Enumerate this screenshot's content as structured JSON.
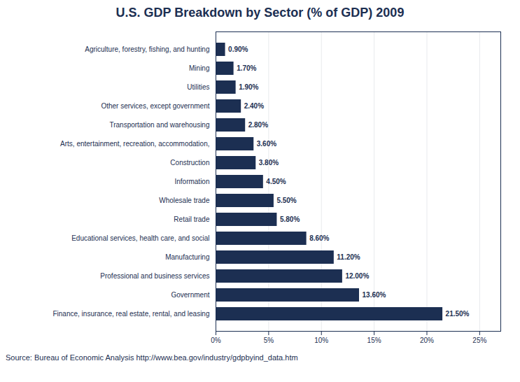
{
  "chart_data": {
    "type": "bar",
    "orientation": "horizontal",
    "title": "U.S. GDP Breakdown by Sector (% of GDP) 2009",
    "source": "Source: Bureau of Economic Analysis http://www.bea.gov/industry/gdpbyind_data.htm",
    "categories": [
      "Finance, insurance, real estate, rental, and leasing",
      "Government",
      "Professional and business services",
      "Manufacturing",
      "Educational services, health care, and social",
      "Retail trade",
      "Wholesale trade",
      "Information",
      "Construction",
      "Arts, entertainment, recreation, accommodation,",
      "Transportation and warehousing",
      "Other services, except government",
      "Utilities",
      "Mining",
      "Agriculture, forestry, fishing, and hunting"
    ],
    "values": [
      21.5,
      13.6,
      12.0,
      11.2,
      8.6,
      5.8,
      5.5,
      4.5,
      3.8,
      3.6,
      2.8,
      2.4,
      1.9,
      1.7,
      0.9
    ],
    "value_labels": [
      "21.50%",
      "13.60%",
      "12.00%",
      "11.20%",
      "8.60%",
      "5.80%",
      "5.50%",
      "4.50%",
      "3.80%",
      "3.60%",
      "2.80%",
      "2.40%",
      "1.90%",
      "1.70%",
      "0.90%"
    ],
    "data_labels": true,
    "color": "#1C2F52",
    "xlim": [
      0,
      27
    ],
    "xticks": [
      {
        "value": 0,
        "label": "0%"
      },
      {
        "value": 5,
        "label": "5%"
      },
      {
        "value": 10,
        "label": "10%"
      },
      {
        "value": 15,
        "label": "15%"
      },
      {
        "value": 20,
        "label": "20%"
      },
      {
        "value": 25,
        "label": "25%"
      }
    ],
    "grid": true
  }
}
